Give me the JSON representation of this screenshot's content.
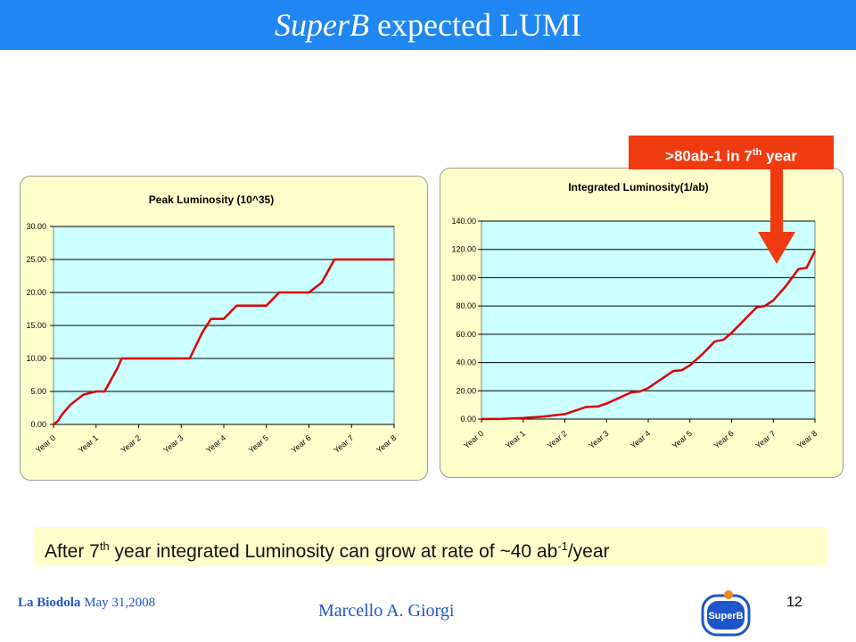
{
  "slide": {
    "title_italic": "SuperB",
    "title_rest": "expected LUMI",
    "callout_main": ">80ab-1 in 7",
    "callout_sup": "th",
    "callout_tail": " year",
    "note_a": "After 7",
    "note_sup1": "th",
    "note_b": " year integrated Luminosity can grow at rate of ~40 ab",
    "note_sup2": "-1",
    "note_c": "/year",
    "footer_place": "La Biodola",
    "footer_date": "May 31,2008",
    "footer_author": "Marcello A. Giorgi",
    "page_number": "12",
    "logo_text": "SuperB"
  },
  "colors": {
    "title_bar": "#1f86f2",
    "plot_bg": "#ccffff",
    "panel_bg": "#ffffcc",
    "line": "#dd0000",
    "callout": "#f03a10"
  },
  "chart_data": [
    {
      "type": "line",
      "title": "Peak Luminosity (10^35)",
      "categories": [
        "Year 0",
        "Year 1",
        "Year 2",
        "Year 3",
        "Year 4",
        "Year 5",
        "Year 6",
        "Year 7",
        "Year 8"
      ],
      "x": [
        0,
        0.1,
        0.2,
        0.4,
        0.7,
        1.0,
        1.2,
        1.5,
        1.6,
        2.0,
        2.5,
        3.0,
        3.2,
        3.5,
        3.7,
        4.0,
        4.3,
        4.6,
        5.0,
        5.3,
        5.6,
        6.0,
        6.3,
        6.6,
        7.0,
        7.5,
        8.0
      ],
      "values": [
        0,
        0.5,
        1.5,
        3.0,
        4.5,
        5,
        5,
        8.5,
        10,
        10,
        10,
        10,
        10,
        14,
        16,
        16,
        18,
        18,
        18,
        20,
        20,
        20,
        21.5,
        25,
        25,
        25,
        25
      ],
      "ylim": [
        0,
        30
      ],
      "yticks": [
        "0.00",
        "5.00",
        "10.00",
        "15.00",
        "20.00",
        "25.00",
        "30.00"
      ],
      "grid": true,
      "legend": "none"
    },
    {
      "type": "line",
      "title": "Integrated Luminosity(1/ab)",
      "categories": [
        "Year 0",
        "Year 1",
        "Year 2",
        "Year 3",
        "Year 4",
        "Year 5",
        "Year 6",
        "Year 7",
        "Year 8"
      ],
      "x": [
        0,
        0.5,
        1.0,
        1.5,
        2.0,
        2.2,
        2.5,
        2.8,
        3.0,
        3.3,
        3.6,
        3.8,
        4.0,
        4.3,
        4.6,
        4.8,
        5.0,
        5.3,
        5.6,
        5.8,
        6.0,
        6.3,
        6.6,
        6.8,
        7.0,
        7.3,
        7.6,
        7.8,
        8.0
      ],
      "values": [
        0,
        0.2,
        0.8,
        1.8,
        3.5,
        5.5,
        8.5,
        9,
        11,
        15,
        19,
        19.5,
        22,
        28,
        34,
        34.5,
        38,
        46,
        55,
        56,
        61,
        70,
        79,
        80,
        84,
        94,
        106,
        107,
        119
      ],
      "ylim": [
        0,
        140
      ],
      "yticks": [
        "0.00",
        "20.00",
        "40.00",
        "60.00",
        "80.00",
        "100.00",
        "120.00",
        "140.00"
      ],
      "grid": true,
      "legend": "none"
    }
  ]
}
